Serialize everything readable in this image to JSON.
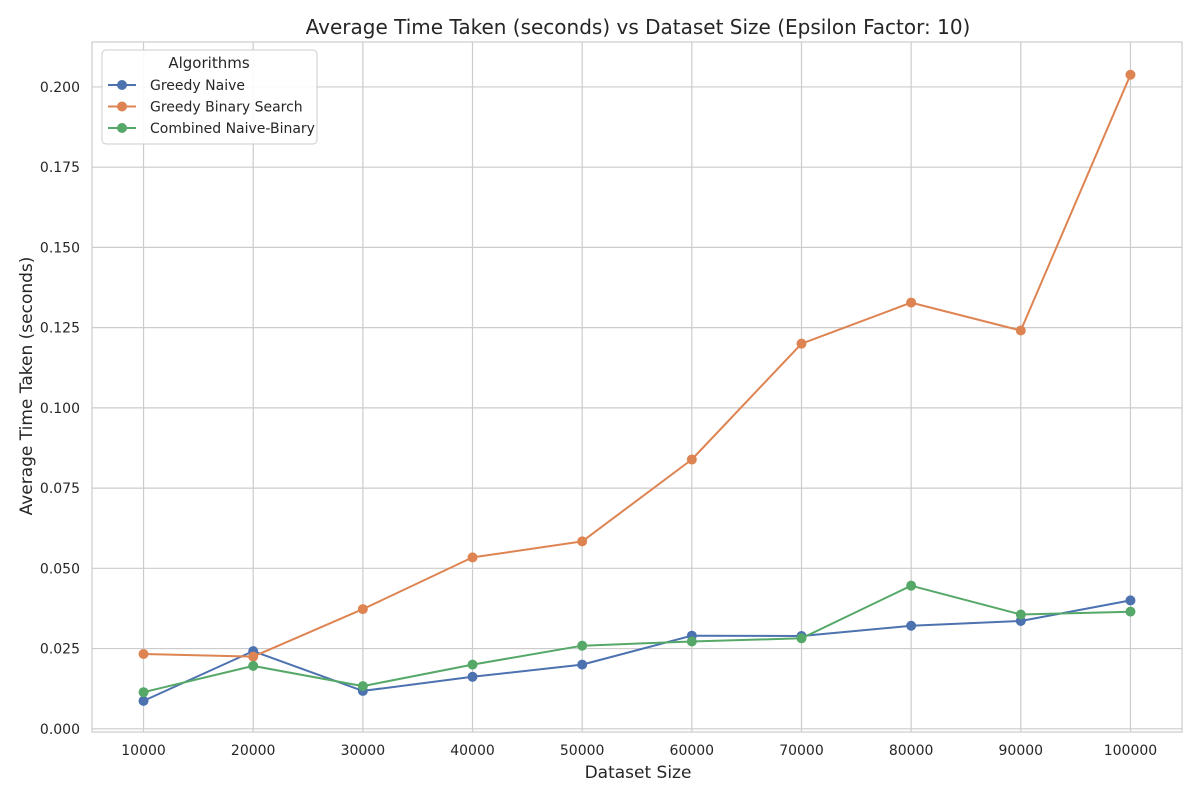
{
  "chart_data": {
    "type": "line",
    "title": "Average Time Taken (seconds) vs Dataset Size (Epsilon Factor: 10)",
    "xlabel": "Dataset Size",
    "ylabel": "Average Time Taken (seconds)",
    "x": [
      10000,
      20000,
      30000,
      40000,
      50000,
      60000,
      70000,
      80000,
      90000,
      100000
    ],
    "x_tick_labels": [
      "10000",
      "20000",
      "30000",
      "40000",
      "50000",
      "60000",
      "70000",
      "80000",
      "90000",
      "100000"
    ],
    "y_ticks": [
      0.0,
      0.025,
      0.05,
      0.075,
      0.1,
      0.125,
      0.15,
      0.175,
      0.2
    ],
    "y_tick_labels": [
      "0.000",
      "0.025",
      "0.050",
      "0.075",
      "0.100",
      "0.125",
      "0.150",
      "0.175",
      "0.200"
    ],
    "ylim": [
      -0.001,
      0.214
    ],
    "xlim": [
      5300,
      104700
    ],
    "grid": true,
    "legend_title": "Algorithms",
    "legend_position": "top-left",
    "series": [
      {
        "name": "Greedy Naive",
        "color": "#4c72b0",
        "values": [
          0.0087,
          0.0242,
          0.0118,
          0.0162,
          0.02,
          0.029,
          0.0289,
          0.0321,
          0.0336,
          0.04
        ]
      },
      {
        "name": "Greedy Binary Search",
        "color": "#dd8452",
        "values": [
          0.0233,
          0.0225,
          0.0373,
          0.0534,
          0.0584,
          0.0839,
          0.12,
          0.1328,
          0.1241,
          0.2038
        ]
      },
      {
        "name": "Combined Naive-Binary",
        "color": "#55a868",
        "values": [
          0.0114,
          0.0196,
          0.0133,
          0.02,
          0.0259,
          0.0272,
          0.0282,
          0.0446,
          0.0356,
          0.0365
        ]
      }
    ]
  }
}
